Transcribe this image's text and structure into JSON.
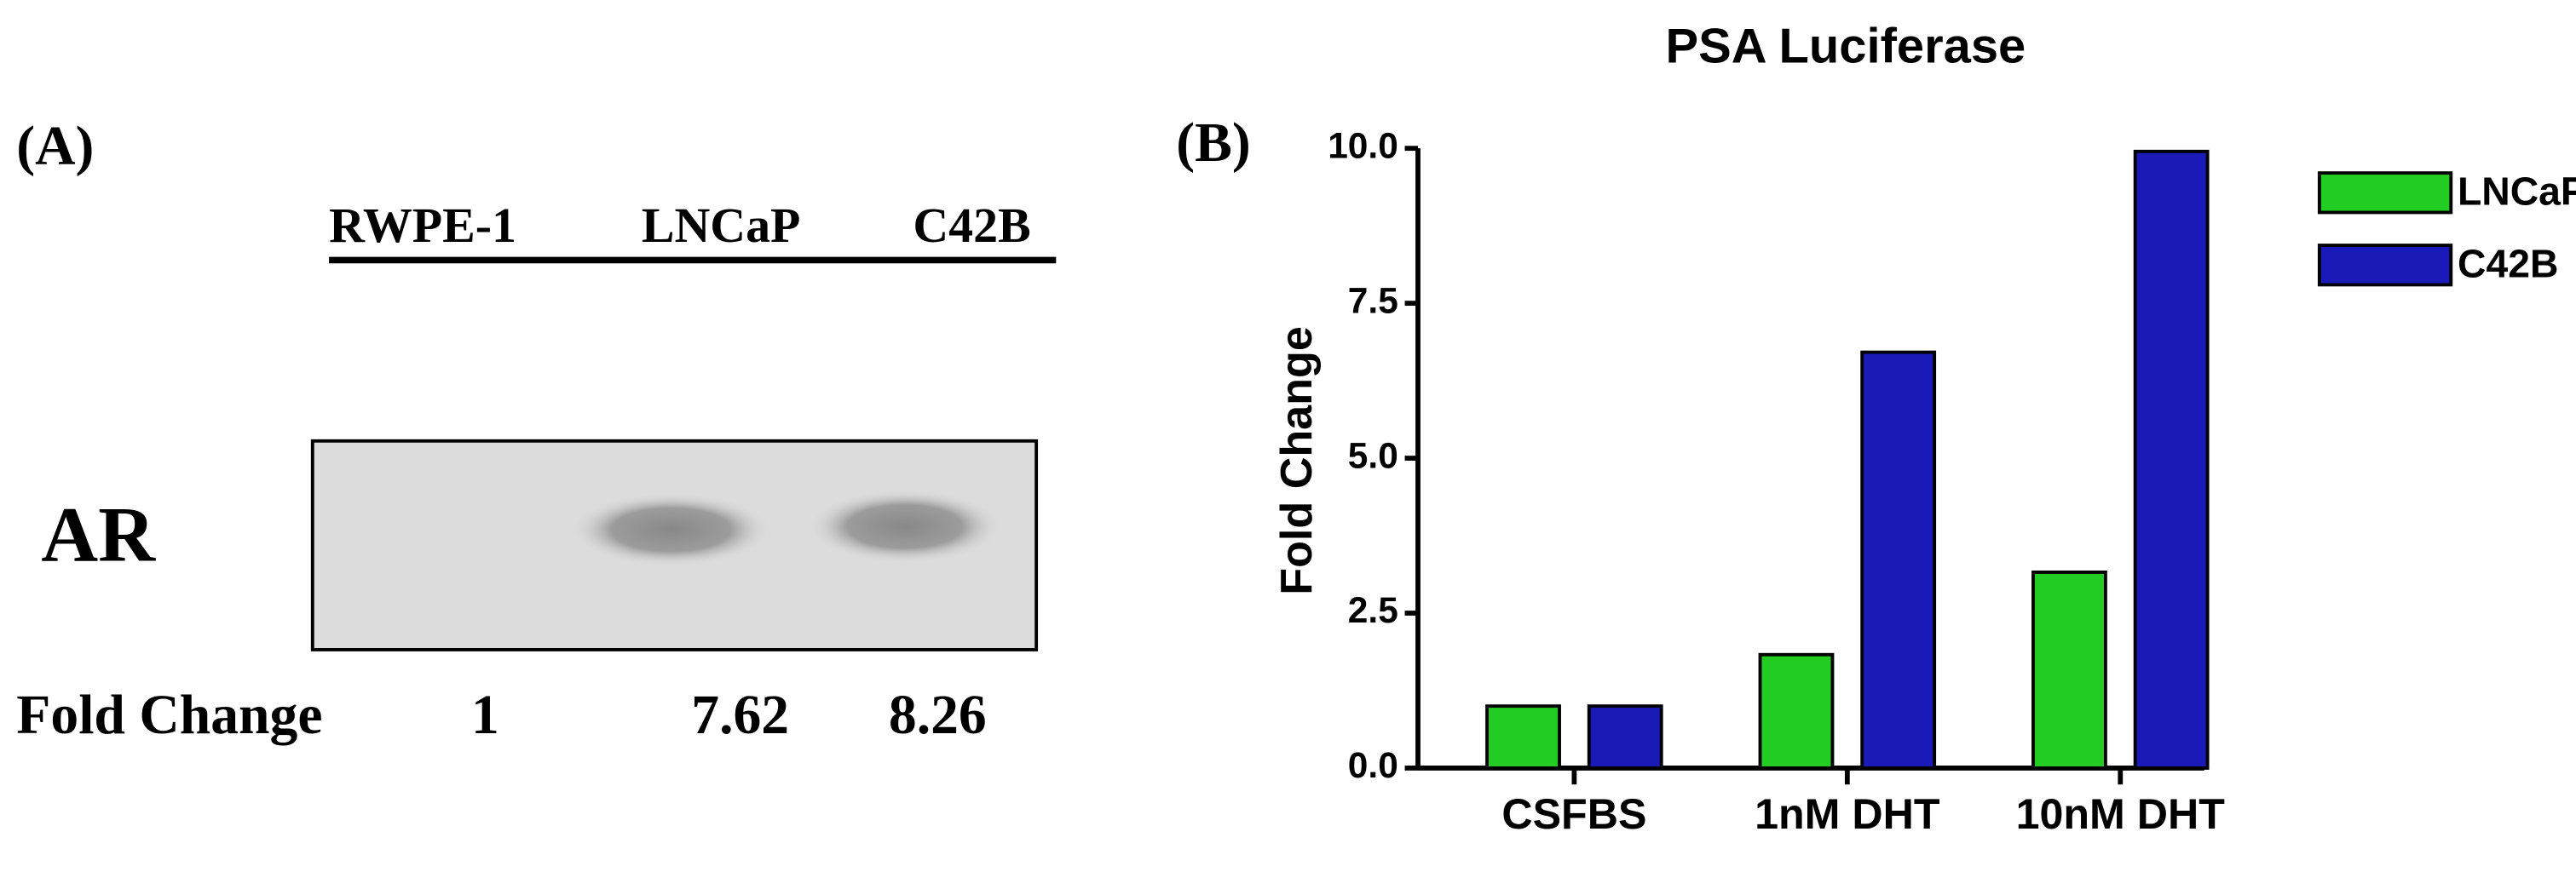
{
  "panel_a": {
    "label": "(A)",
    "lanes": [
      "RWPE-1",
      "LNCaP",
      "C42B"
    ],
    "row_label": "AR",
    "fold_change_label": "Fold Change",
    "fold_change": [
      1,
      7.62,
      8.26
    ]
  },
  "chart_data": {
    "type": "bar",
    "label": "(B)",
    "title": "PSA Luciferase",
    "y_label": "Fold  Change",
    "categories": [
      "CSFBS",
      "1nM DHT",
      "10nM DHT"
    ],
    "series": [
      {
        "name": "LNCaP",
        "color": "#22cc22",
        "values": [
          1.0,
          1.83,
          3.16
        ]
      },
      {
        "name": "C42B",
        "color": "#1a1ab8",
        "values": [
          1.0,
          6.71,
          9.95
        ]
      }
    ],
    "ylim": [
      0,
      10
    ],
    "yticks": [
      {
        "value": 0,
        "label": "0.0"
      },
      {
        "value": 2.5,
        "label": "2.5"
      },
      {
        "value": 5,
        "label": "5.0"
      },
      {
        "value": 7.5,
        "label": "7.5"
      },
      {
        "value": 10,
        "label": "10.0"
      }
    ],
    "legend": "right"
  }
}
